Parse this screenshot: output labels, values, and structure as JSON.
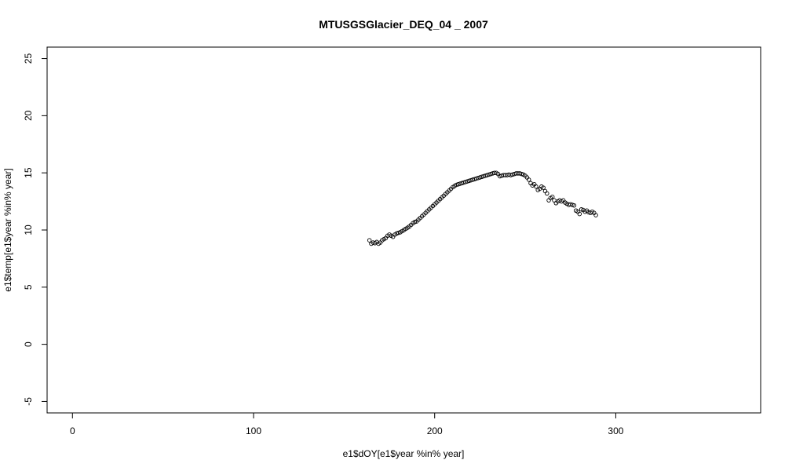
{
  "chart_data": {
    "type": "scatter",
    "title": "MTUSGSGlacier_DEQ_04 _ 2007",
    "xlabel": "e1$dOY[e1$year %in% year]",
    "ylabel": "e1$temp[e1$year %in% year]",
    "xlim": [
      -14,
      380
    ],
    "ylim": [
      -6,
      26
    ],
    "x_ticks": [
      0,
      100,
      200,
      300
    ],
    "y_ticks": [
      -5,
      0,
      5,
      10,
      15,
      20,
      25
    ],
    "grid": false,
    "legend": "none",
    "marker": "open-circle",
    "x": [
      164,
      165,
      166,
      167,
      168,
      169,
      170,
      171,
      172,
      173,
      174,
      175,
      176,
      177,
      178,
      179,
      180,
      181,
      182,
      183,
      184,
      185,
      186,
      187,
      188,
      189,
      190,
      191,
      192,
      193,
      194,
      195,
      196,
      197,
      198,
      199,
      200,
      201,
      202,
      203,
      204,
      205,
      206,
      207,
      208,
      209,
      210,
      211,
      212,
      213,
      214,
      215,
      216,
      217,
      218,
      219,
      220,
      221,
      222,
      223,
      224,
      225,
      226,
      227,
      228,
      229,
      230,
      231,
      232,
      233,
      234,
      235,
      236,
      237,
      238,
      239,
      240,
      241,
      242,
      243,
      244,
      245,
      246,
      247,
      248,
      249,
      250,
      251,
      252,
      253,
      254,
      255,
      256,
      257,
      258,
      259,
      260,
      261,
      262,
      263,
      264,
      265,
      266,
      267,
      268,
      269,
      270,
      271,
      272,
      273,
      274,
      275,
      276,
      277,
      278,
      279,
      280,
      281,
      282,
      283,
      284,
      285,
      286,
      287,
      288,
      289
    ],
    "y": [
      9.1,
      8.8,
      8.9,
      8.85,
      8.95,
      8.8,
      8.9,
      9.1,
      9.2,
      9.3,
      9.5,
      9.6,
      9.5,
      9.4,
      9.6,
      9.7,
      9.75,
      9.8,
      9.9,
      10.0,
      10.1,
      10.2,
      10.3,
      10.45,
      10.6,
      10.7,
      10.75,
      10.9,
      11.05,
      11.2,
      11.35,
      11.5,
      11.65,
      11.8,
      11.95,
      12.1,
      12.25,
      12.4,
      12.55,
      12.7,
      12.85,
      13.0,
      13.15,
      13.3,
      13.45,
      13.6,
      13.75,
      13.85,
      13.95,
      14.0,
      14.05,
      14.1,
      14.15,
      14.2,
      14.25,
      14.3,
      14.35,
      14.4,
      14.45,
      14.5,
      14.55,
      14.6,
      14.65,
      14.7,
      14.75,
      14.8,
      14.85,
      14.9,
      14.95,
      15.0,
      15.0,
      14.9,
      14.7,
      14.75,
      14.8,
      14.8,
      14.8,
      14.85,
      14.8,
      14.85,
      14.9,
      14.95,
      14.95,
      14.95,
      14.9,
      14.85,
      14.75,
      14.6,
      14.4,
      14.1,
      13.9,
      14.0,
      13.8,
      13.5,
      13.6,
      13.8,
      13.7,
      13.4,
      13.2,
      12.6,
      12.8,
      12.9,
      12.6,
      12.35,
      12.5,
      12.6,
      12.5,
      12.6,
      12.4,
      12.3,
      12.2,
      12.25,
      12.2,
      12.15,
      11.7,
      11.6,
      11.4,
      11.8,
      11.75,
      11.6,
      11.7,
      11.55,
      11.5,
      11.6,
      11.5,
      11.3
    ]
  }
}
